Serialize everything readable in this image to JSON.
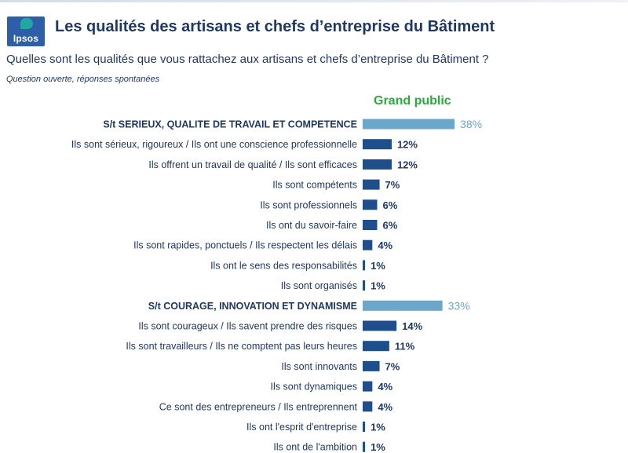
{
  "header": {
    "logo_text": "Ipsos",
    "title": "Les qualités des artisans et chefs d’entreprise du Bâtiment",
    "question": "Quelles sont les qualités que vous rattachez aux artisans et chefs d’entreprise du Bâtiment ?",
    "note": "Question ouverte, réponses spontanées"
  },
  "colors": {
    "title": "#1f3864",
    "summary_bar": "#6aa7cb",
    "detail_bar": "#1f4e8c",
    "series_title": "#2cab3c"
  },
  "chart_data": {
    "type": "bar",
    "orientation": "horizontal",
    "series_name": "Grand public",
    "unit": "%",
    "categories": [
      "S/t SERIEUX, QUALITE DE TRAVAIL ET COMPETENCE",
      "Ils sont sérieux, rigoureux / Ils ont une conscience professionnelle",
      "Ils offrent un travail de qualité / Ils sont efficaces",
      "Ils sont compétents",
      "Ils sont professionnels",
      "Ils ont du savoir-faire",
      "Ils sont rapides, ponctuels / Ils respectent les délais",
      "Ils ont le sens des responsabilités",
      "Ils sont organisés",
      "S/t COURAGE, INNOVATION ET DYNAMISME",
      "Ils sont courageux / Ils savent prendre des risques",
      "Ils sont travailleurs / Ils ne comptent pas leurs heures",
      "Ils sont innovants",
      "Ils sont dynamiques",
      "Ce sont des entrepreneurs / Ils entreprennent",
      "Ils ont l'esprit d'entreprise",
      "Ils ont de l'ambition"
    ],
    "values": [
      38,
      12,
      12,
      7,
      6,
      6,
      4,
      1,
      1,
      33,
      14,
      11,
      7,
      4,
      4,
      1,
      1
    ],
    "value_labels": [
      "38%",
      "12%",
      "12%",
      "7%",
      "6%",
      "6%",
      "4%",
      "1%",
      "1%",
      "33%",
      "14%",
      "11%",
      "7%",
      "4%",
      "4%",
      "1%",
      "1%"
    ],
    "is_subtotal": [
      true,
      false,
      false,
      false,
      false,
      false,
      false,
      false,
      false,
      true,
      false,
      false,
      false,
      false,
      false,
      false,
      false
    ]
  }
}
